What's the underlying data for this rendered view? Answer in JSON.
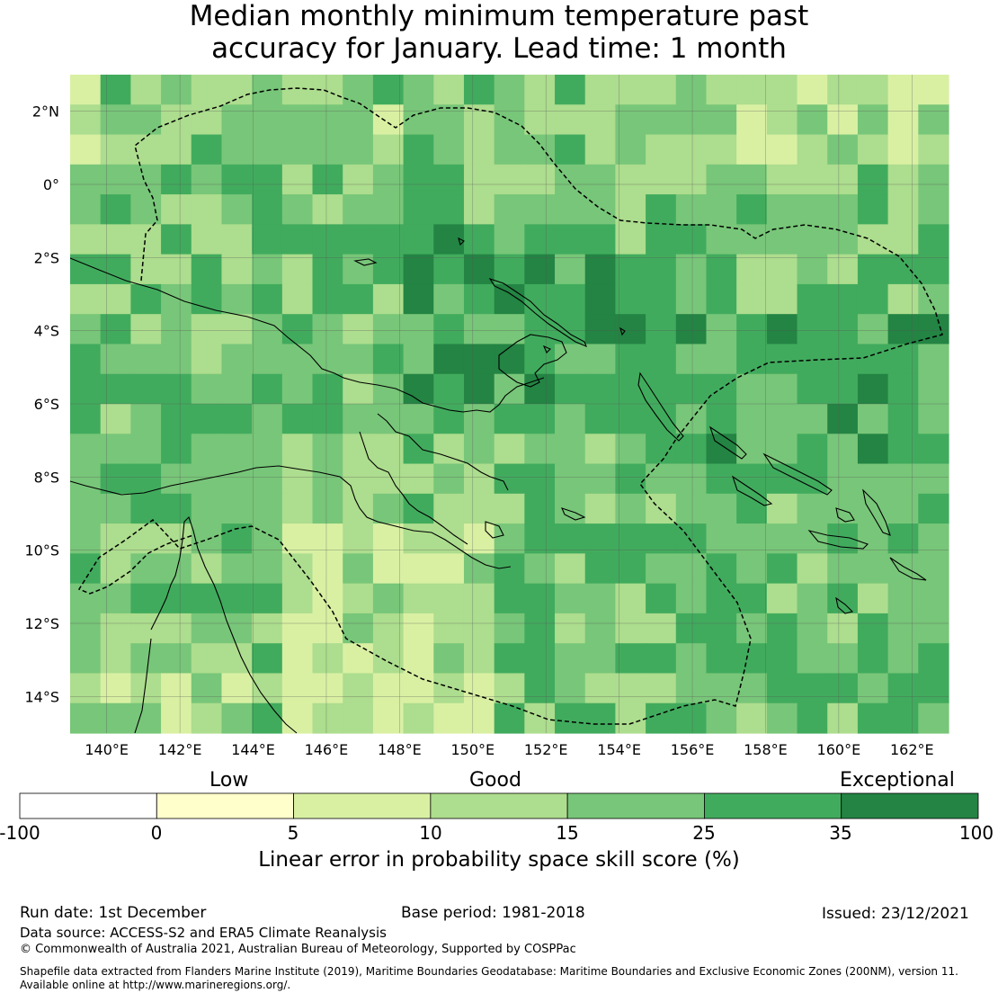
{
  "title": {
    "line1": "Median monthly minimum temperature past",
    "line2": "accuracy for January. Lead time: 1 month"
  },
  "map": {
    "lat_labels": [
      "2°N",
      "0°",
      "2°S",
      "4°S",
      "6°S",
      "8°S",
      "10°S",
      "12°S",
      "14°S"
    ],
    "lat_values": [
      2,
      0,
      -2,
      -4,
      -6,
      -8,
      -10,
      -12,
      -14
    ],
    "lon_labels": [
      "140°E",
      "142°E",
      "144°E",
      "146°E",
      "148°E",
      "150°E",
      "152°E",
      "154°E",
      "156°E",
      "158°E",
      "160°E",
      "162°E"
    ],
    "lon_values": [
      140,
      142,
      144,
      146,
      148,
      150,
      152,
      154,
      156,
      158,
      160,
      162
    ],
    "lon_range": [
      139,
      163
    ],
    "lat_range": [
      -15,
      3
    ]
  },
  "legend": {
    "categories": {
      "low": "Low",
      "good": "Good",
      "exceptional": "Exceptional"
    },
    "ticks": [
      "-100",
      "0",
      "5",
      "10",
      "15",
      "25",
      "35",
      "100"
    ],
    "colors": [
      "#ffffff",
      "#ffffcc",
      "#d9f0a3",
      "#addd8e",
      "#78c679",
      "#41ab5d",
      "#238443"
    ],
    "title": "Linear error in probability space skill score (%)"
  },
  "footer": {
    "run_date": "Run date: 1st December",
    "base_period": "Base period: 1981-2018",
    "issued": "Issued: 23/12/2021",
    "data_source": "Data source: ACCESS-S2 and ERA5 Climate Reanalysis",
    "copyright": "© Commonwealth of Australia 2021, Australian Bureau of Meteorology, Supported by COSPPac",
    "shapefile_line1": "Shapefile data extracted from Flanders Marine Institute (2019), Maritime Boundaries Geodatabase: Maritime Boundaries and Exclusive Economic Zones (200NM), version 11.",
    "shapefile_line2": "Available online at http://www.marineregions.org/."
  }
}
